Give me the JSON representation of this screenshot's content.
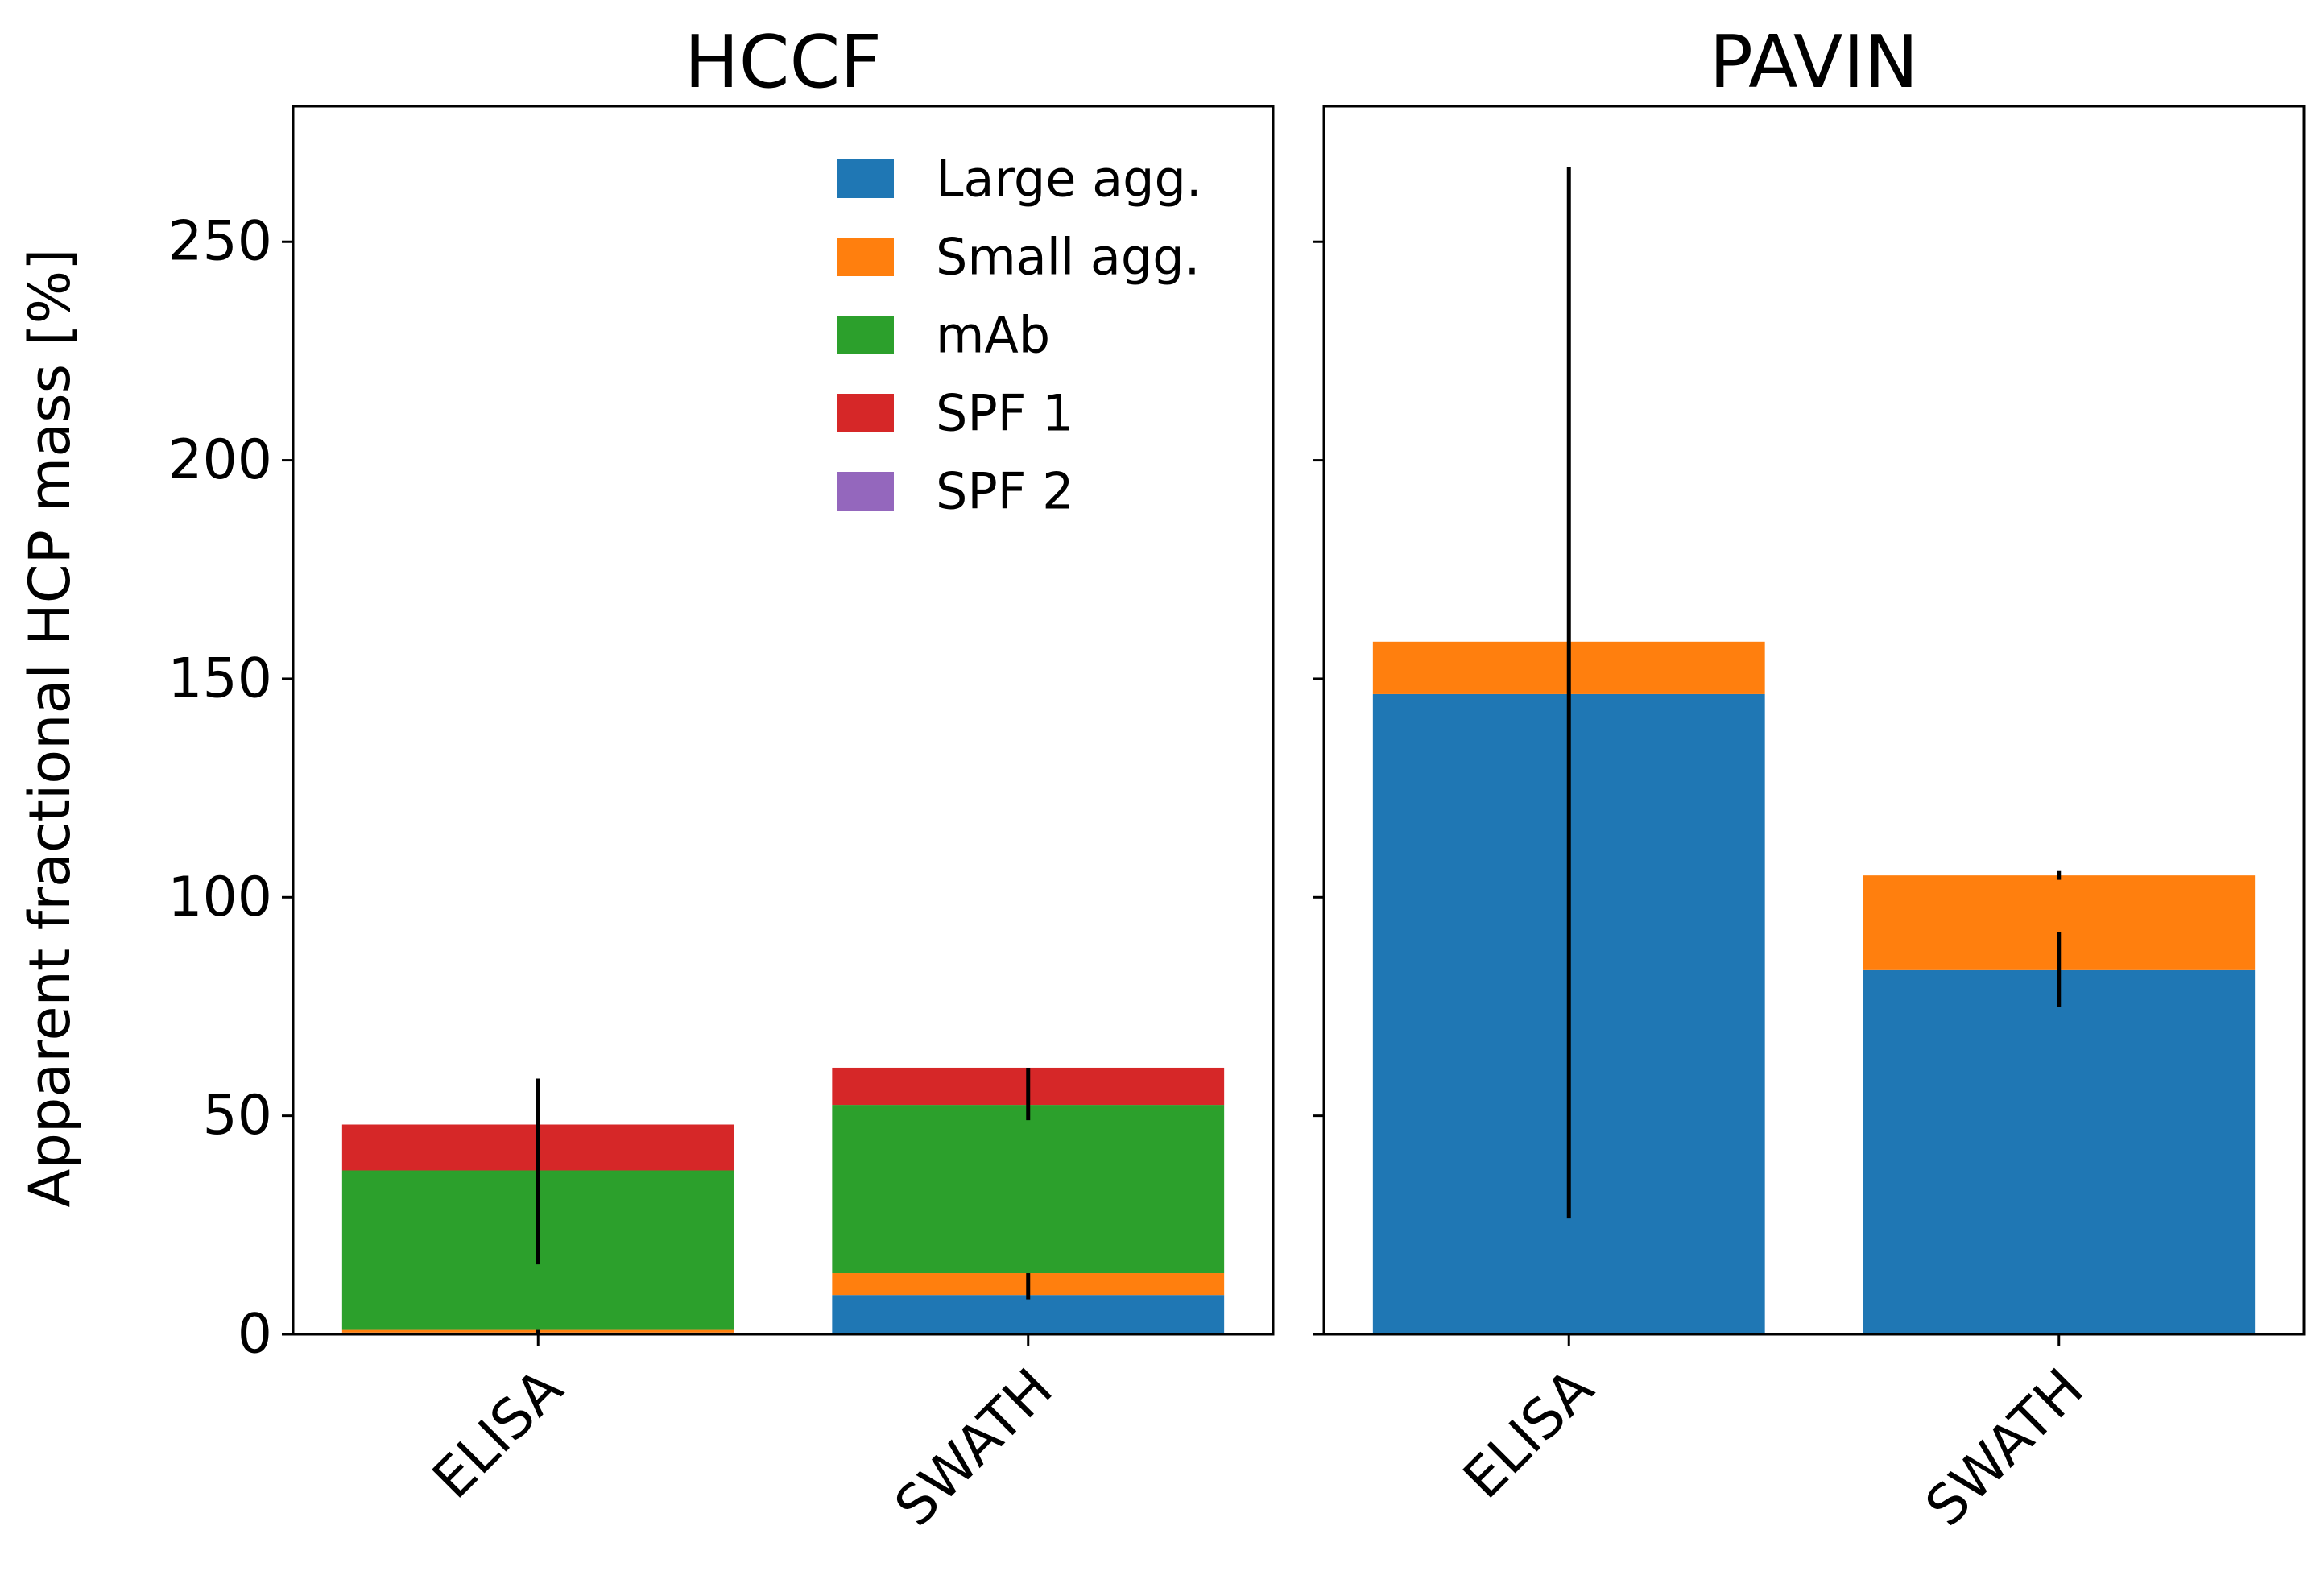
{
  "chart_data": {
    "type": "bar",
    "stacked": true,
    "ylabel": "Apparent  fractional  HCP  mass  [%]",
    "ylim": [
      0,
      281
    ],
    "yticks": [
      0,
      50,
      100,
      150,
      200,
      250
    ],
    "sharey": true,
    "grid": false,
    "legend": {
      "placement": "upper-right",
      "panel": "HCCF"
    },
    "series": [
      {
        "name": "Large agg.",
        "color": "#1f77b4"
      },
      {
        "name": "Small agg.",
        "color": "#ff7f0e"
      },
      {
        "name": "mAb",
        "color": "#2ca02c"
      },
      {
        "name": "SPF 1",
        "color": "#d62728"
      },
      {
        "name": "SPF 2",
        "color": "#9467bd"
      }
    ],
    "panels": [
      {
        "title": "HCCF",
        "categories": [
          "ELISA",
          "SWATH"
        ],
        "values": {
          "Large agg.": [
            0.4,
            9
          ],
          "Small agg.": [
            0.6,
            5
          ],
          "mAb": [
            36.5,
            38.5
          ],
          "SPF 1": [
            10.5,
            8.5
          ],
          "SPF 2": [
            0,
            0
          ]
        },
        "error_bars": [
          {
            "category": "ELISA",
            "center": 37,
            "low": 16,
            "high": 58.5
          },
          {
            "category": "ELISA",
            "center": 0.5,
            "low": 0,
            "high": 1
          },
          {
            "category": "SWATH",
            "center": 11,
            "low": 8,
            "high": 14
          },
          {
            "category": "SWATH",
            "center": 56.5,
            "low": 49,
            "high": 61
          }
        ]
      },
      {
        "title": "PAVIN",
        "categories": [
          "ELISA",
          "SWATH"
        ],
        "values": {
          "Large agg.": [
            146.5,
            83.5
          ],
          "Small agg.": [
            12,
            21.5
          ],
          "mAb": [
            0,
            0
          ],
          "SPF 1": [
            0,
            0
          ],
          "SPF 2": [
            0,
            0
          ]
        },
        "error_bars": [
          {
            "category": "ELISA",
            "center": 146.5,
            "low": 26.5,
            "high": 267
          },
          {
            "category": "SWATH",
            "center": 83.5,
            "low": 75,
            "high": 92
          },
          {
            "category": "SWATH",
            "center": 105,
            "low": 104,
            "high": 106
          }
        ]
      }
    ]
  }
}
